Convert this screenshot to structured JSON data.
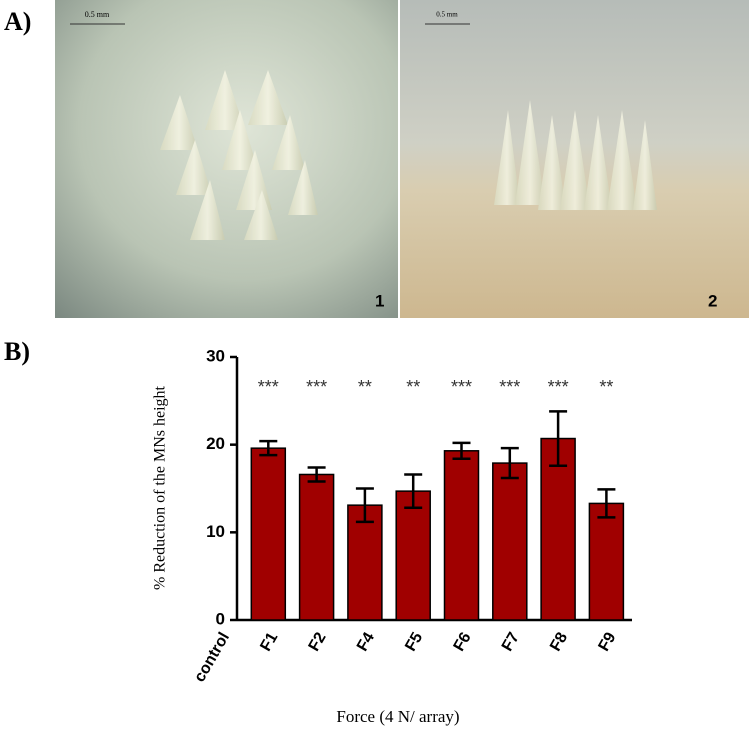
{
  "panel_labels": [
    "A)",
    "B)"
  ],
  "photos": [
    {
      "scale": "0.5 mm",
      "number": "1"
    },
    {
      "scale": "0.5 mm",
      "number": "2"
    }
  ],
  "chart_data": {
    "type": "bar",
    "x_label": "Force (4 N/ array)",
    "y_label": "% Reduction of the MNs height",
    "categories": [
      "control",
      "F1",
      "F2",
      "F4",
      "F5",
      "F6",
      "F7",
      "F8",
      "F9"
    ],
    "values": [
      0,
      19.6,
      16.6,
      13.1,
      14.7,
      19.3,
      17.9,
      20.7,
      13.3
    ],
    "errors": [
      0,
      0.8,
      0.8,
      1.9,
      1.9,
      0.9,
      1.7,
      3.1,
      1.6
    ],
    "annotations": [
      null,
      "***",
      "***",
      "**",
      "**",
      "***",
      "***",
      "***",
      "**"
    ],
    "color": "#a00000",
    "ylim": [
      0,
      30
    ],
    "yticks": [
      0,
      10,
      20,
      30
    ]
  }
}
